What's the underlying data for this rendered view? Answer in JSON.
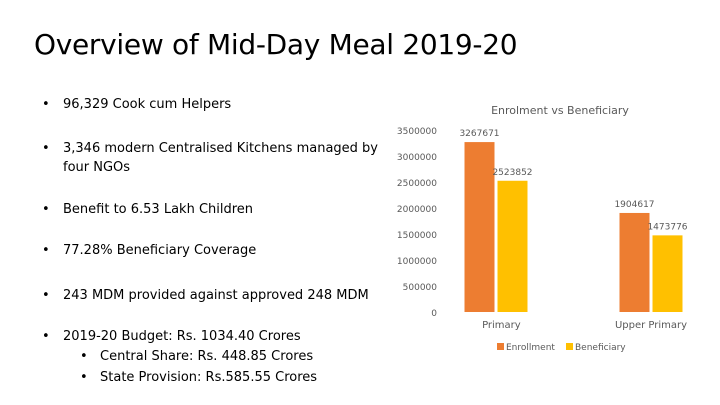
{
  "slide": {
    "title": "Overview of Mid-Day Meal 2019-20",
    "bullet_symbol": "•",
    "bullets": [
      "96,329 Cook cum Helpers",
      "3,346 modern Centralised Kitchens managed by four NGOs",
      "Benefit to 6.53 Lakh Children",
      "77.28% Beneficiary Coverage",
      "243 MDM provided against approved 248 MDM",
      "2019-20 Budget: Rs. 1034.40 Crores"
    ],
    "sub_bullets": [
      "Central Share: Rs. 448.85 Crores",
      "State Provision: Rs.585.55 Crores"
    ]
  },
  "chart_data": {
    "type": "bar",
    "title": "Enrolment vs Beneficiary",
    "categories": [
      "Primary",
      "Upper Primary"
    ],
    "series": [
      {
        "name": "Enrollment",
        "values": [
          3267671,
          1904617
        ],
        "color": "#ED7D31"
      },
      {
        "name": "Beneficiary",
        "values": [
          2523852,
          1473776
        ],
        "color": "#FFC000"
      }
    ],
    "data_labels": [
      [
        "3267671",
        "1904617"
      ],
      [
        "2523852",
        "1473776"
      ]
    ],
    "y_ticks": [
      0,
      500000,
      1000000,
      1500000,
      2000000,
      2500000,
      3000000,
      3500000
    ],
    "y_tick_labels": [
      "0",
      "500000",
      "1000000",
      "1500000",
      "2000000",
      "2500000",
      "3000000",
      "3500000"
    ],
    "ylim": [
      0,
      3500000
    ],
    "grid": false,
    "legend_position": "bottom"
  }
}
